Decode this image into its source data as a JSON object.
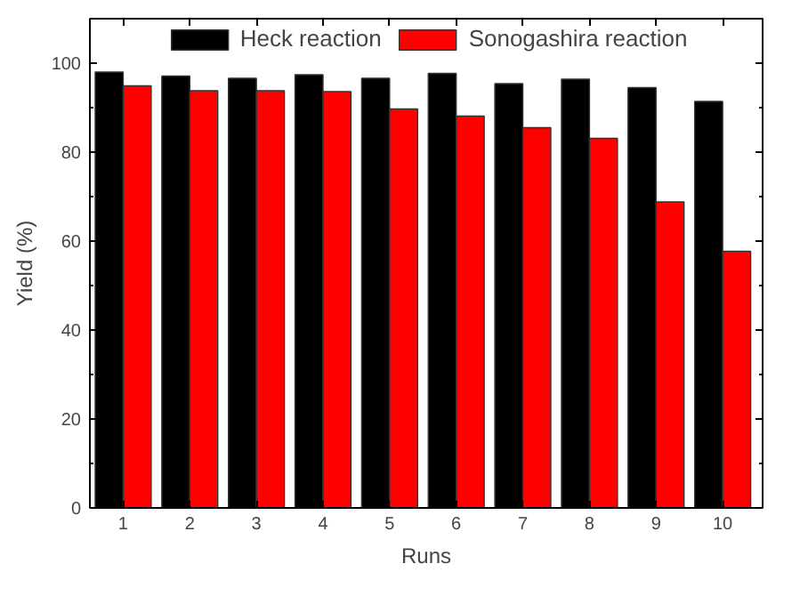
{
  "chart_data": {
    "type": "bar",
    "xlabel": "Runs",
    "ylabel": "Yield (%)",
    "categories": [
      "1",
      "2",
      "3",
      "4",
      "5",
      "6",
      "7",
      "8",
      "9",
      "10"
    ],
    "series": [
      {
        "name": "Heck reaction",
        "color": "#000000",
        "values": [
          98.0,
          97.1,
          96.6,
          97.4,
          96.6,
          97.7,
          95.4,
          96.4,
          94.5,
          91.4
        ]
      },
      {
        "name": "Sonogashira reaction",
        "color": "#ff0000",
        "values": [
          94.9,
          93.8,
          93.8,
          93.6,
          89.7,
          88.1,
          85.5,
          83.1,
          68.8,
          57.7
        ]
      }
    ],
    "ylim": [
      0,
      110
    ],
    "yticks": [
      0,
      20,
      40,
      60,
      80,
      100
    ],
    "grid": false,
    "legend": "top"
  }
}
